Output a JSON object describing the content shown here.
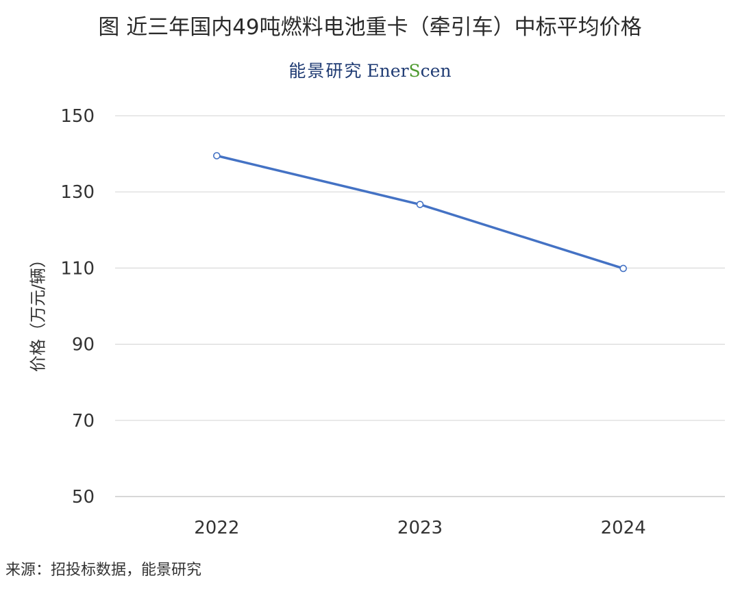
{
  "title": "图 近三年国内49吨燃料电池重卡（牵引车）中标平均价格",
  "brand": {
    "cn": "能景研究",
    "en_prefix": "Ener",
    "en_s": "S",
    "en_suffix": "cen",
    "s_color": "#4e9a2f"
  },
  "source": "来源：招投标数据，能景研究",
  "chart_data": {
    "type": "line",
    "categories": [
      "2022",
      "2023",
      "2024"
    ],
    "values": [
      139.5,
      126.7,
      109.9
    ],
    "ylabel": "价格（万元/辆）",
    "ylim": [
      50,
      150
    ],
    "yticks": [
      50,
      70,
      90,
      110,
      130,
      150
    ],
    "grid": true,
    "line_color": "#4472c4"
  }
}
